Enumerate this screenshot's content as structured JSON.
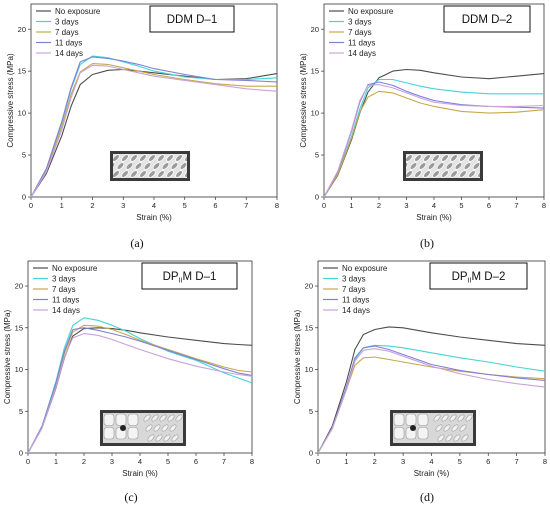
{
  "chart_data": [
    {
      "type": "line",
      "panel_label": "(a)",
      "title": "DDM D–1",
      "xlabel": "Strain  (%)",
      "ylabel": "Compressive stress (MPa)",
      "xlim": [
        0,
        8
      ],
      "ylim": [
        0,
        23
      ],
      "xticks": [
        "0",
        "1",
        "2",
        "3",
        "4",
        "5",
        "6",
        "7",
        "8"
      ],
      "yticks": [
        "0",
        "5",
        "10",
        "15",
        "20"
      ],
      "legend_position": "top-left",
      "inset": "lattice-diagonal",
      "series": [
        {
          "name": "No exposure",
          "color": "#4d4d4d",
          "x": [
            0,
            0.5,
            1,
            1.3,
            1.6,
            2,
            2.5,
            3,
            3.5,
            4,
            5,
            6,
            7,
            8
          ],
          "y": [
            0,
            2.8,
            7.3,
            10.8,
            13.4,
            14.6,
            15.1,
            15.2,
            15,
            14.8,
            14.4,
            14,
            14.1,
            14.7
          ]
        },
        {
          "name": "3 days",
          "color": "#44d4d4",
          "x": [
            0,
            0.5,
            1,
            1.3,
            1.6,
            2,
            2.5,
            3,
            3.5,
            4,
            5,
            6,
            7,
            8
          ],
          "y": [
            0,
            3.3,
            8.8,
            12.8,
            15.8,
            16.8,
            16.6,
            16.1,
            15.6,
            15,
            14.3,
            14,
            14,
            14.2
          ]
        },
        {
          "name": "7 days",
          "color": "#c8a84b",
          "x": [
            0,
            0.5,
            1,
            1.3,
            1.6,
            2,
            2.5,
            3,
            3.5,
            4,
            5,
            6,
            7,
            8
          ],
          "y": [
            0,
            3.1,
            8.4,
            12.2,
            14.9,
            15.9,
            15.8,
            15.4,
            15,
            14.6,
            14,
            13.5,
            13.2,
            13.2
          ]
        },
        {
          "name": "11 days",
          "color": "#8080d8",
          "x": [
            0,
            0.5,
            1,
            1.3,
            1.6,
            2,
            2.5,
            3,
            3.5,
            4,
            5,
            6,
            7,
            8
          ],
          "y": [
            0,
            3.4,
            9,
            13,
            16.1,
            16.7,
            16.5,
            16.2,
            15.8,
            15.3,
            14.6,
            14,
            13.9,
            13.7
          ]
        },
        {
          "name": "14 days",
          "color": "#c9a3d9",
          "x": [
            0,
            0.5,
            1,
            1.3,
            1.6,
            2,
            2.5,
            3,
            3.5,
            4,
            5,
            6,
            7,
            8
          ],
          "y": [
            0,
            3,
            8,
            11.8,
            14.8,
            15.7,
            15.6,
            15.2,
            14.8,
            14.4,
            13.9,
            13.4,
            12.9,
            12.6
          ]
        }
      ]
    },
    {
      "type": "line",
      "panel_label": "(b)",
      "title": "DDM D–2",
      "xlabel": "Strain  (%)",
      "ylabel": "Compressive stress (MPa)",
      "xlim": [
        0,
        8
      ],
      "ylim": [
        0,
        23
      ],
      "xticks": [
        "0",
        "1",
        "2",
        "3",
        "4",
        "5",
        "6",
        "7",
        "8"
      ],
      "yticks": [
        "0",
        "5",
        "10",
        "15",
        "20"
      ],
      "legend_position": "top-left",
      "inset": "lattice-diagonal",
      "series": [
        {
          "name": "No exposure",
          "color": "#4d4d4d",
          "x": [
            0,
            0.5,
            1,
            1.3,
            1.6,
            2,
            2.5,
            3,
            3.5,
            4,
            5,
            6,
            7,
            8
          ],
          "y": [
            0,
            2.6,
            6.8,
            10,
            12.5,
            14.2,
            15,
            15.2,
            15.1,
            14.8,
            14.3,
            14.1,
            14.4,
            14.7
          ]
        },
        {
          "name": "3 days",
          "color": "#44d4d4",
          "x": [
            0,
            0.5,
            1,
            1.3,
            1.6,
            2,
            2.5,
            3,
            3.5,
            4,
            5,
            6,
            7,
            8
          ],
          "y": [
            0,
            2.8,
            7.2,
            10.5,
            13,
            14,
            14,
            13.6,
            13.2,
            12.9,
            12.5,
            12.3,
            12.3,
            12.3
          ]
        },
        {
          "name": "7 days",
          "color": "#c8a84b",
          "x": [
            0,
            0.5,
            1,
            1.3,
            1.6,
            2,
            2.5,
            3,
            3.5,
            4,
            5,
            6,
            7,
            8
          ],
          "y": [
            0,
            2.7,
            7,
            10.1,
            11.9,
            12.6,
            12.4,
            11.8,
            11.2,
            10.8,
            10.2,
            10,
            10.1,
            10.4
          ]
        },
        {
          "name": "11 days",
          "color": "#8080d8",
          "x": [
            0,
            0.5,
            1,
            1.3,
            1.6,
            2,
            2.5,
            3,
            3.5,
            4,
            5,
            6,
            7,
            8
          ],
          "y": [
            0,
            3,
            7.8,
            11.3,
            13.4,
            13.7,
            13.3,
            12.6,
            12,
            11.5,
            11,
            10.8,
            10.7,
            10.6
          ]
        },
        {
          "name": "14 days",
          "color": "#c9a3d9",
          "x": [
            0,
            0.5,
            1,
            1.3,
            1.6,
            2,
            2.5,
            3,
            3.5,
            4,
            5,
            6,
            7,
            8
          ],
          "y": [
            0,
            3.1,
            8,
            11.5,
            13.3,
            13.4,
            13,
            12.4,
            11.8,
            11.3,
            10.9,
            10.8,
            10.8,
            10.9
          ]
        }
      ]
    },
    {
      "type": "line",
      "panel_label": "(c)",
      "title_main": "DP",
      "title_sub": "II",
      "title_rest": "M D–1",
      "xlabel": "Strain  (%)",
      "ylabel": "Compressive stress (MPa)",
      "xlim": [
        0,
        8
      ],
      "ylim": [
        0,
        23
      ],
      "xticks": [
        "0",
        "1",
        "2",
        "3",
        "4",
        "5",
        "6",
        "7",
        "8"
      ],
      "yticks": [
        "0",
        "5",
        "10",
        "15",
        "20"
      ],
      "legend_position": "top-left",
      "inset": "lattice-mixed",
      "series": [
        {
          "name": "No exposure",
          "color": "#4d4d4d",
          "x": [
            0,
            0.5,
            1,
            1.3,
            1.6,
            2,
            2.5,
            3,
            3.5,
            4,
            5,
            6,
            7,
            7.5,
            8
          ],
          "y": [
            0,
            3,
            7.8,
            11.4,
            14,
            14.9,
            15,
            14.9,
            14.7,
            14.4,
            13.9,
            13.5,
            13.1,
            13,
            12.9
          ]
        },
        {
          "name": "3 days",
          "color": "#44d4d4",
          "x": [
            0,
            0.5,
            1,
            1.3,
            1.6,
            2,
            2.5,
            3,
            3.5,
            4,
            5,
            6,
            7,
            7.5,
            8
          ],
          "y": [
            0,
            3.2,
            8.6,
            12.6,
            15.3,
            16.2,
            15.9,
            15.3,
            14.6,
            13.7,
            12.2,
            11.1,
            9.6,
            9,
            8.4
          ]
        },
        {
          "name": "7 days",
          "color": "#c8a84b",
          "x": [
            0,
            0.5,
            1,
            1.3,
            1.6,
            2,
            2.5,
            3,
            3.5,
            4,
            5,
            6,
            7,
            7.5,
            8
          ],
          "y": [
            0,
            3.1,
            8.2,
            11.9,
            14.5,
            15.3,
            15.2,
            14.8,
            14.2,
            13.5,
            12.4,
            11.3,
            10.3,
            9.9,
            9.7
          ]
        },
        {
          "name": "11 days",
          "color": "#8080d8",
          "x": [
            0,
            0.5,
            1,
            1.3,
            1.6,
            2,
            2.5,
            3,
            3.5,
            4,
            5,
            6,
            7,
            7.5,
            8
          ],
          "y": [
            0,
            3.2,
            8.4,
            12.2,
            14.8,
            15,
            14.7,
            14.3,
            13.9,
            13.4,
            12.3,
            11.2,
            10.1,
            9.6,
            9.3
          ]
        },
        {
          "name": "14 days",
          "color": "#c9a3d9",
          "x": [
            0,
            0.5,
            1,
            1.3,
            1.6,
            2,
            2.5,
            3,
            3.5,
            4,
            5,
            6,
            7,
            7.5,
            8
          ],
          "y": [
            0,
            3,
            7.9,
            11.5,
            13.8,
            14.3,
            14.1,
            13.6,
            13,
            12.4,
            11.3,
            10.4,
            9.7,
            9.4,
            9.2
          ]
        }
      ]
    },
    {
      "type": "line",
      "panel_label": "(d)",
      "title_main": "DP",
      "title_sub": "II",
      "title_rest": "M D–2",
      "xlabel": "Strain  (%)",
      "ylabel": "Compressive stress (MPa)",
      "xlim": [
        0,
        8
      ],
      "ylim": [
        0,
        23
      ],
      "xticks": [
        "0",
        "1",
        "2",
        "3",
        "4",
        "5",
        "6",
        "7",
        "8"
      ],
      "yticks": [
        "0",
        "5",
        "10",
        "15",
        "20"
      ],
      "legend_position": "top-left",
      "inset": "lattice-mixed",
      "series": [
        {
          "name": "No exposure",
          "color": "#4d4d4d",
          "x": [
            0,
            0.5,
            1,
            1.3,
            1.6,
            2,
            2.5,
            3,
            3.5,
            4,
            5,
            6,
            7,
            8
          ],
          "y": [
            0,
            3.2,
            8.5,
            12.4,
            14.2,
            14.8,
            15.1,
            15,
            14.7,
            14.4,
            13.9,
            13.5,
            13.1,
            12.9
          ]
        },
        {
          "name": "3 days",
          "color": "#44d4d4",
          "x": [
            0,
            0.5,
            1,
            1.3,
            1.6,
            2,
            2.5,
            3,
            3.5,
            4,
            5,
            6,
            7,
            8
          ],
          "y": [
            0,
            3,
            7.8,
            11.2,
            12.6,
            12.9,
            12.8,
            12.6,
            12.3,
            12,
            11.4,
            10.9,
            10.3,
            9.8
          ]
        },
        {
          "name": "7 days",
          "color": "#c8a84b",
          "x": [
            0,
            0.5,
            1,
            1.3,
            1.6,
            2,
            2.5,
            3,
            3.5,
            4,
            5,
            6,
            7,
            8
          ],
          "y": [
            0,
            2.9,
            7.6,
            10.5,
            11.4,
            11.5,
            11.2,
            10.9,
            10.6,
            10.3,
            9.8,
            9.4,
            9.1,
            8.9
          ]
        },
        {
          "name": "11 days",
          "color": "#8080d8",
          "x": [
            0,
            0.5,
            1,
            1.3,
            1.6,
            2,
            2.5,
            3,
            3.5,
            4,
            5,
            6,
            7,
            8
          ],
          "y": [
            0,
            3,
            7.9,
            11.4,
            12.6,
            12.8,
            12.4,
            11.8,
            11.2,
            10.6,
            9.9,
            9.4,
            9,
            8.7
          ]
        },
        {
          "name": "14 days",
          "color": "#c9a3d9",
          "x": [
            0,
            0.5,
            1,
            1.3,
            1.6,
            2,
            2.5,
            3,
            3.5,
            4,
            5,
            6,
            7,
            8
          ],
          "y": [
            0,
            2.9,
            7.6,
            11,
            12.3,
            12.5,
            12.2,
            11.6,
            11,
            10.4,
            9.5,
            8.8,
            8.3,
            7.9
          ]
        }
      ]
    }
  ]
}
